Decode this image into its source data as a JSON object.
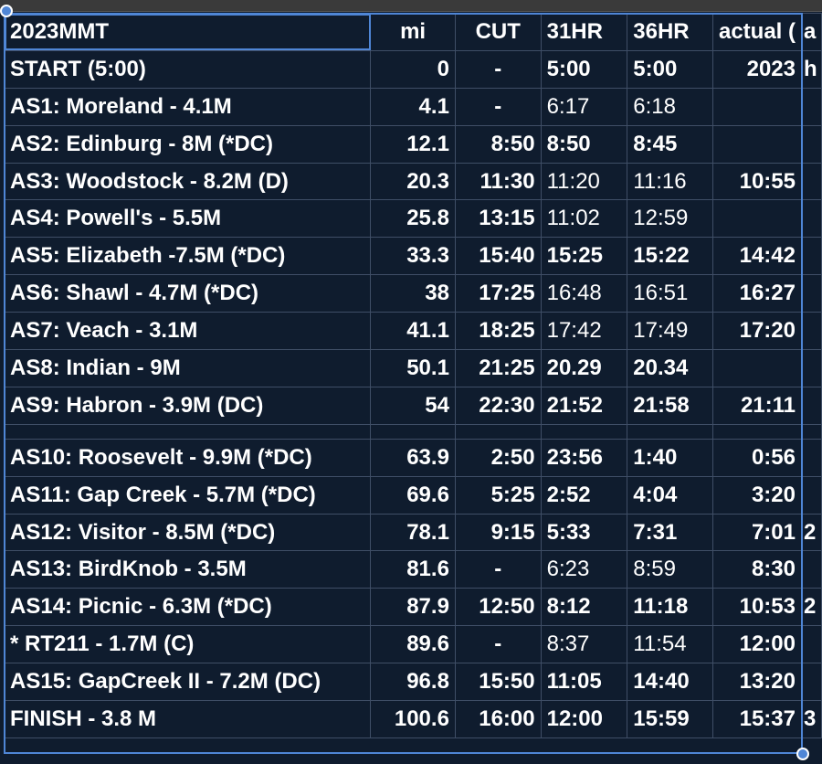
{
  "sheet": {
    "header": {
      "name": "2023MMT",
      "mi": "mi",
      "cut": "CUT",
      "h31": "31HR",
      "h36": "36HR",
      "actual": "actual (",
      "extra": "a"
    },
    "rows": [
      {
        "name": "START (5:00)",
        "mi": "0",
        "cut": "-",
        "h31": "5:00",
        "h36": "5:00",
        "actual": "2023",
        "extra": "h"
      },
      {
        "name": "AS1: Moreland - 4.1M",
        "mi": "4.1",
        "cut": "-",
        "h31": "6:17",
        "h36": "6:18",
        "actual": "",
        "extra": ""
      },
      {
        "name": "AS2: Edinburg - 8M (*DC)",
        "mi": "12.1",
        "cut": "8:50",
        "h31": "8:50",
        "h36": "8:45",
        "actual": "",
        "extra": ""
      },
      {
        "name": "AS3: Woodstock - 8.2M (D)",
        "mi": "20.3",
        "cut": "11:30",
        "h31": "11:20",
        "h36": "11:16",
        "actual": "10:55",
        "extra": ""
      },
      {
        "name": "AS4: Powell's - 5.5M",
        "mi": "25.8",
        "cut": "13:15",
        "h31": "11:02",
        "h36": "12:59",
        "actual": "",
        "extra": ""
      },
      {
        "name": "AS5: Elizabeth -7.5M (*DC)",
        "mi": "33.3",
        "cut": "15:40",
        "h31": "15:25",
        "h36": "15:22",
        "actual": "14:42",
        "extra": ""
      },
      {
        "name": "AS6: Shawl - 4.7M (*DC)",
        "mi": "38",
        "cut": "17:25",
        "h31": "16:48",
        "h36": "16:51",
        "actual": "16:27",
        "extra": ""
      },
      {
        "name": "AS7: Veach - 3.1M",
        "mi": "41.1",
        "cut": "18:25",
        "h31": "17:42",
        "h36": "17:49",
        "actual": "17:20",
        "extra": ""
      },
      {
        "name": "AS8: Indian - 9M",
        "mi": "50.1",
        "cut": "21:25",
        "h31": "20.29",
        "h36": "20.34",
        "actual": "",
        "extra": ""
      },
      {
        "name": "AS9: Habron - 3.9M (DC)",
        "mi": "54",
        "cut": "22:30",
        "h31": "21:52",
        "h36": "21:58",
        "actual": "21:11",
        "extra": ""
      },
      {
        "name": "AS10: Roosevelt - 9.9M (*DC)",
        "mi": "63.9",
        "cut": "2:50",
        "h31": "23:56",
        "h36": "1:40",
        "actual": "0:56",
        "extra": ""
      },
      {
        "name": "AS11: Gap Creek - 5.7M (*DC)",
        "mi": "69.6",
        "cut": "5:25",
        "h31": "2:52",
        "h36": "4:04",
        "actual": "3:20",
        "extra": ""
      },
      {
        "name": "AS12: Visitor - 8.5M (*DC)",
        "mi": "78.1",
        "cut": "9:15",
        "h31": "5:33",
        "h36": "7:31",
        "actual": "7:01",
        "extra": "2"
      },
      {
        "name": "AS13: BirdKnob - 3.5M",
        "mi": "81.6",
        "cut": "-",
        "h31": "6:23",
        "h36": "8:59",
        "actual": "8:30",
        "extra": ""
      },
      {
        "name": "AS14: Picnic - 6.3M (*DC)",
        "mi": "87.9",
        "cut": "12:50",
        "h31": "8:12",
        "h36": "11:18",
        "actual": "10:53",
        "extra": "2"
      },
      {
        "name": " * RT211 - 1.7M (C)",
        "mi": "89.6",
        "cut": "-",
        "h31": "8:37",
        "h36": "11:54",
        "actual": "12:00",
        "extra": ""
      },
      {
        "name": "AS15: GapCreek II - 7.2M (DC)",
        "mi": "96.8",
        "cut": "15:50",
        "h31": "11:05",
        "h36": "14:40",
        "actual": "13:20",
        "extra": ""
      },
      {
        "name": "FINISH - 3.8 M",
        "mi": "100.6",
        "cut": "16:00",
        "h31": "12:00",
        "h36": "15:59",
        "actual": "15:37",
        "extra": "3"
      }
    ]
  },
  "colors": {
    "cell_background": "#0f1c2e",
    "grid_line": "#3f4e66",
    "selection": "#4f86d6",
    "text": "#ffffff"
  }
}
